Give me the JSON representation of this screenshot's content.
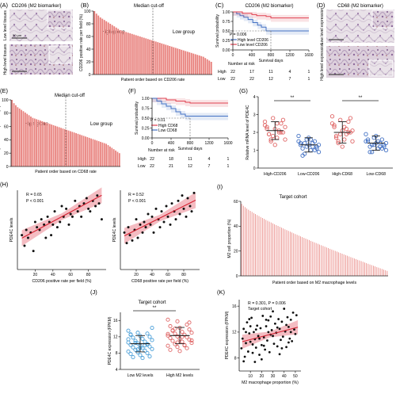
{
  "panels": {
    "A": {
      "label": "(A)",
      "title": "CD206 (M2 biomarker)",
      "row_low": "Low level tissues",
      "row_high": "High level tissues",
      "scale": "50 μm"
    },
    "B": {
      "label": "(B)",
      "median": "Median cut-off",
      "high": "High group",
      "low": "Low group"
    },
    "C": {
      "label": "(C)",
      "title": "CD206 (M2 biomarker)",
      "p": "P = 0.006",
      "legend_high": "High level CD206",
      "legend_low": "Low level CD206",
      "risk_title": "Number at risk",
      "risk_rows": [
        "High",
        "Low"
      ]
    },
    "D": {
      "label": "(D)",
      "title": "CD68 (M2 biomarker)",
      "row_low": "Low level expression",
      "row_high": "High level expression",
      "scale": "50 μm"
    },
    "E": {
      "label": "(E)",
      "median": "Median cut-off",
      "high": "High group",
      "low": "Low group"
    },
    "F": {
      "label": "(F)",
      "p": "P = 0.01",
      "legend_high": "High CD68",
      "legend_low": "Low CD68",
      "risk_title": "Number at risk",
      "risk_rows": [
        "High",
        "Low"
      ]
    },
    "G": {
      "label": "(G)",
      "sig1": "**",
      "sig2": "**"
    },
    "H": {
      "label": "(H)",
      "left_stats": [
        "R = 0.65",
        "P < 0.001"
      ],
      "right_stats": [
        "R = 0.52",
        "P < 0.001"
      ]
    },
    "I": {
      "label": "(I)",
      "title": "Target cohort"
    },
    "J": {
      "label": "(J)",
      "title": "Target cohort",
      "sig": "**"
    },
    "K": {
      "label": "(K)",
      "stats": "R = 0.301, P = 0.006",
      "title": "Target cohort"
    }
  },
  "chart_data": [
    {
      "id": "B",
      "type": "bar",
      "ylabel": "CD206 positive rate per field (%)",
      "xlabel": "Patient order based on CD206 rate",
      "ylim": [
        0,
        100
      ],
      "yticks": [
        0,
        20,
        40,
        60,
        80,
        100
      ],
      "values": [
        100,
        96,
        93,
        90,
        88,
        86,
        84,
        82,
        80,
        78,
        76,
        74,
        72,
        70,
        69,
        68,
        67,
        66,
        65,
        64,
        63,
        62,
        61,
        60,
        59,
        58,
        57,
        56,
        55,
        54,
        53,
        52,
        51,
        50,
        49,
        48,
        47,
        46,
        45,
        44,
        43,
        42,
        41,
        40,
        39,
        38,
        37,
        36,
        35,
        34,
        33,
        32,
        31,
        30,
        29,
        28,
        26,
        24,
        22,
        20
      ],
      "color": "#e8807c"
    },
    {
      "id": "C",
      "type": "line",
      "ylabel": "Survival probability",
      "xlabel": "Survival days",
      "xlim": [
        0,
        1600
      ],
      "ylim": [
        0,
        1
      ],
      "xticks": [
        0,
        400,
        800,
        1200,
        1600
      ],
      "yticks": [
        0,
        0.25,
        0.5,
        0.75,
        1.0
      ],
      "series": [
        {
          "name": "High level CD206",
          "color": "#4472c4",
          "x": [
            0,
            80,
            150,
            230,
            320,
            420,
            520,
            600,
            700,
            1600
          ],
          "y": [
            1.0,
            0.95,
            0.9,
            0.86,
            0.8,
            0.72,
            0.65,
            0.6,
            0.5,
            0.5
          ]
        },
        {
          "name": "Low level CD206",
          "color": "#e04050",
          "x": [
            0,
            200,
            400,
            500,
            700,
            800,
            1600
          ],
          "y": [
            1.0,
            0.96,
            0.93,
            0.9,
            0.88,
            0.84,
            0.84
          ]
        }
      ],
      "risk_x": [
        0,
        400,
        800,
        1200,
        1600
      ],
      "risk_high": [
        22,
        17,
        11,
        4,
        1
      ],
      "risk_low": [
        22,
        22,
        12,
        7,
        1
      ]
    },
    {
      "id": "E",
      "type": "bar",
      "ylabel": "CD68 positive rate per field (%)",
      "xlabel": "Patient order based on CD68 rate",
      "ylim": [
        0,
        100
      ],
      "yticks": [
        0,
        20,
        40,
        60,
        80,
        100
      ],
      "values": [
        100,
        95,
        92,
        89,
        87,
        85,
        83,
        81,
        79,
        77,
        75,
        73,
        72,
        71,
        70,
        69,
        68,
        67,
        66,
        65,
        64,
        63,
        62,
        61,
        60,
        59,
        58,
        57,
        56,
        55,
        54,
        53,
        52,
        51,
        50,
        49,
        48,
        47,
        46,
        45,
        44,
        43,
        42,
        41,
        40,
        39,
        38,
        37,
        36,
        35,
        34,
        32,
        30,
        28,
        26,
        24,
        22,
        20
      ],
      "color": "#e8807c"
    },
    {
      "id": "F",
      "type": "line",
      "ylabel": "Survival probability",
      "xlabel": "Survival days",
      "xlim": [
        0,
        1600
      ],
      "ylim": [
        0,
        1
      ],
      "xticks": [
        0,
        400,
        800,
        1200,
        1600
      ],
      "yticks": [
        0,
        0.25,
        0.5,
        0.75,
        1.0
      ],
      "series": [
        {
          "name": "High CD68",
          "color": "#e04050",
          "x": [
            0,
            300,
            500,
            700,
            800,
            1600
          ],
          "y": [
            1.0,
            0.96,
            0.93,
            0.9,
            0.88,
            0.88
          ]
        },
        {
          "name": "Low CD68",
          "color": "#4472c4",
          "x": [
            0,
            100,
            200,
            300,
            400,
            500,
            600,
            700,
            1600
          ],
          "y": [
            1.0,
            0.93,
            0.86,
            0.8,
            0.74,
            0.66,
            0.6,
            0.55,
            0.55
          ]
        }
      ],
      "risk_x": [
        0,
        400,
        800,
        1200,
        1600
      ],
      "risk_high": [
        22,
        18,
        11,
        4,
        1
      ],
      "risk_low": [
        22,
        21,
        12,
        7,
        1
      ]
    },
    {
      "id": "G",
      "type": "scatter",
      "ylabel": "Relative mRNA level of PDE4C",
      "ylim": [
        0,
        4
      ],
      "yticks": [
        0,
        1,
        2,
        3,
        4
      ],
      "categories": [
        "High-CD206",
        "Low-CD206",
        "High-CD68",
        "Low-CD68"
      ],
      "colors": [
        "#e06666",
        "#4472c4",
        "#e06666",
        "#4472c4"
      ],
      "means": [
        2.1,
        1.3,
        2.0,
        1.4
      ],
      "sds": [
        0.5,
        0.4,
        0.6,
        0.4
      ],
      "values": [
        [
          2.6,
          2.8,
          2.5,
          2.3,
          2.2,
          2.0,
          1.9,
          1.7,
          1.6,
          1.5,
          2.1,
          2.4,
          1.8,
          2.0,
          2.2,
          1.3,
          2.7,
          1.9,
          2.5,
          2.3,
          1.6,
          2.0
        ],
        [
          1.8,
          1.6,
          1.5,
          1.4,
          1.3,
          1.2,
          1.1,
          1.0,
          0.9,
          0.8,
          1.4,
          1.5,
          1.2,
          1.0,
          1.3,
          1.7,
          1.1,
          0.7,
          1.6,
          1.3,
          1.4,
          1.2
        ],
        [
          2.9,
          2.7,
          2.6,
          2.3,
          2.1,
          2.0,
          1.8,
          1.6,
          1.5,
          1.4,
          2.2,
          2.5,
          1.9,
          2.0,
          2.4,
          1.2,
          2.8,
          1.7,
          2.3,
          2.1,
          1.5,
          1.9
        ],
        [
          1.9,
          1.7,
          1.6,
          1.5,
          1.4,
          1.3,
          1.2,
          1.1,
          1.0,
          0.9,
          1.4,
          1.5,
          1.3,
          1.1,
          1.6,
          1.8,
          1.2,
          0.9,
          1.5,
          1.4,
          1.3,
          1.2
        ]
      ]
    },
    {
      "id": "H1",
      "type": "scatter",
      "ylabel": "PDE4C levels",
      "xlabel": "CD206 positive rate per field (%)",
      "xlim": [
        0,
        100
      ],
      "ylim": [
        0,
        3
      ],
      "xticks": [
        20,
        40,
        60,
        80
      ],
      "fit": {
        "intercept": 1.1,
        "slope": 0.018
      },
      "points": [
        [
          5,
          1.3
        ],
        [
          8,
          0.9
        ],
        [
          10,
          1.5
        ],
        [
          12,
          1.2
        ],
        [
          15,
          1.4
        ],
        [
          18,
          0.7
        ],
        [
          20,
          1.8
        ],
        [
          22,
          1.6
        ],
        [
          25,
          1.5
        ],
        [
          27,
          1.9
        ],
        [
          30,
          1.7
        ],
        [
          32,
          1.2
        ],
        [
          34,
          2.0
        ],
        [
          36,
          1.8
        ],
        [
          38,
          1.3
        ],
        [
          40,
          1.7
        ],
        [
          42,
          2.2
        ],
        [
          45,
          1.6
        ],
        [
          48,
          1.8
        ],
        [
          50,
          2.4
        ],
        [
          52,
          2.0
        ],
        [
          55,
          2.3
        ],
        [
          58,
          1.7
        ],
        [
          60,
          2.1
        ],
        [
          62,
          2.0
        ],
        [
          65,
          2.6
        ],
        [
          68,
          2.2
        ],
        [
          70,
          2.4
        ],
        [
          72,
          2.0
        ],
        [
          75,
          2.5
        ],
        [
          78,
          2.7
        ],
        [
          80,
          2.3
        ],
        [
          82,
          2.2
        ],
        [
          85,
          2.6
        ],
        [
          88,
          2.4
        ],
        [
          90,
          2.8
        ],
        [
          92,
          2.5
        ],
        [
          95,
          1.9
        ]
      ]
    },
    {
      "id": "H2",
      "type": "scatter",
      "ylabel": "PDE4C levels",
      "xlabel": "CD68 positive rate per field (%)",
      "xlim": [
        0,
        100
      ],
      "ylim": [
        0,
        3
      ],
      "xticks": [
        20,
        40,
        60,
        80
      ],
      "fit": {
        "intercept": 1.2,
        "slope": 0.015
      },
      "points": [
        [
          5,
          1.4
        ],
        [
          8,
          1.0
        ],
        [
          10,
          1.6
        ],
        [
          12,
          1.3
        ],
        [
          15,
          1.1
        ],
        [
          18,
          1.5
        ],
        [
          20,
          1.9
        ],
        [
          22,
          1.2
        ],
        [
          25,
          1.7
        ],
        [
          28,
          1.4
        ],
        [
          30,
          1.8
        ],
        [
          32,
          1.6
        ],
        [
          35,
          2.1
        ],
        [
          38,
          1.7
        ],
        [
          40,
          2.0
        ],
        [
          42,
          1.4
        ],
        [
          45,
          2.3
        ],
        [
          48,
          1.9
        ],
        [
          50,
          1.6
        ],
        [
          52,
          2.2
        ],
        [
          55,
          1.8
        ],
        [
          58,
          2.4
        ],
        [
          60,
          2.0
        ],
        [
          63,
          1.7
        ],
        [
          65,
          2.5
        ],
        [
          68,
          2.2
        ],
        [
          70,
          1.9
        ],
        [
          73,
          2.6
        ],
        [
          75,
          2.1
        ],
        [
          78,
          2.8
        ],
        [
          80,
          2.3
        ],
        [
          83,
          2.0
        ],
        [
          85,
          2.7
        ],
        [
          88,
          2.4
        ],
        [
          90,
          2.2
        ],
        [
          93,
          2.9
        ]
      ]
    },
    {
      "id": "I",
      "type": "bar",
      "ylabel": "M2 cell proportion (%)",
      "xlabel": "Patient order based on M2 macrophage levels",
      "ylim": [
        0,
        60
      ],
      "yticks": [
        0,
        20,
        40,
        60
      ],
      "color": "#e8807c",
      "n": 85,
      "max": 58,
      "min": 4
    },
    {
      "id": "J",
      "type": "scatter",
      "ylabel": "PDE4C expression (FPKM)",
      "ylim": [
        4,
        18
      ],
      "yticks": [
        4,
        8,
        12,
        16
      ],
      "categories": [
        "Low M2 levels",
        "High M2 levels"
      ],
      "colors": [
        "#4a9fd8",
        "#e06666"
      ],
      "means": [
        10.3,
        12.3
      ],
      "sds": [
        2.0,
        2.0
      ],
      "values": [
        [
          13.5,
          13.0,
          12.8,
          12.5,
          12.2,
          12.0,
          11.8,
          11.5,
          11.2,
          11.0,
          10.8,
          10.6,
          10.4,
          10.2,
          10.0,
          9.8,
          9.6,
          9.4,
          9.2,
          9.0,
          8.8,
          8.6,
          8.4,
          8.2,
          8.0,
          7.8,
          7.5,
          7.2,
          7.0,
          6.8,
          14.2,
          10.5,
          9.9,
          11.4,
          8.9,
          10.1,
          12.6,
          9.3
        ],
        [
          16.2,
          15.8,
          15.0,
          14.6,
          14.2,
          13.8,
          13.5,
          13.2,
          13.0,
          12.8,
          12.5,
          12.3,
          12.1,
          11.9,
          11.7,
          11.5,
          11.3,
          11.0,
          10.8,
          10.5,
          10.2,
          10.0,
          9.8,
          9.5,
          9.2,
          8.8,
          8.5,
          15.5,
          13.6,
          12.0,
          11.1,
          14.0,
          9.9,
          12.7,
          10.6
        ]
      ]
    },
    {
      "id": "K",
      "type": "scatter",
      "ylabel": "PDE4C expression (FPKM)",
      "xlabel": "M2  macrophage proportion (%)",
      "xlim": [
        0,
        55
      ],
      "ylim": [
        6,
        17
      ],
      "xticks": [
        10,
        20,
        30,
        40,
        50
      ],
      "yticks": [
        8,
        12,
        16
      ],
      "fit": {
        "intercept": 10.4,
        "slope": 0.045
      },
      "points": [
        [
          2,
          9.5
        ],
        [
          3,
          11.0
        ],
        [
          4,
          12.5
        ],
        [
          5,
          8.2
        ],
        [
          6,
          10.3
        ],
        [
          7,
          13.5
        ],
        [
          8,
          9.0
        ],
        [
          9,
          11.8
        ],
        [
          10,
          10.5
        ],
        [
          11,
          14.2
        ],
        [
          12,
          8.8
        ],
        [
          13,
          12.0
        ],
        [
          14,
          10.9
        ],
        [
          15,
          9.6
        ],
        [
          16,
          13.0
        ],
        [
          17,
          11.4
        ],
        [
          18,
          8.5
        ],
        [
          19,
          12.6
        ],
        [
          20,
          10.0
        ],
        [
          21,
          14.5
        ],
        [
          22,
          11.2
        ],
        [
          23,
          9.3
        ],
        [
          24,
          12.9
        ],
        [
          25,
          10.7
        ],
        [
          26,
          13.8
        ],
        [
          27,
          8.9
        ],
        [
          28,
          11.6
        ],
        [
          29,
          12.3
        ],
        [
          30,
          15.2
        ],
        [
          31,
          10.2
        ],
        [
          32,
          13.3
        ],
        [
          33,
          11.9
        ],
        [
          34,
          9.8
        ],
        [
          35,
          14.0
        ],
        [
          36,
          12.5
        ],
        [
          37,
          10.8
        ],
        [
          38,
          13.6
        ],
        [
          39,
          11.3
        ],
        [
          40,
          15.6
        ],
        [
          41,
          12.1
        ],
        [
          42,
          9.7
        ],
        [
          43,
          14.3
        ],
        [
          44,
          12.8
        ],
        [
          45,
          11.0
        ],
        [
          46,
          13.9
        ],
        [
          47,
          10.6
        ],
        [
          48,
          15.0
        ],
        [
          49,
          12.4
        ],
        [
          50,
          11.7
        ],
        [
          51,
          14.6
        ],
        [
          4,
          7.5
        ],
        [
          6,
          12.0
        ],
        [
          9,
          14.0
        ],
        [
          12,
          10.1
        ],
        [
          15,
          12.4
        ],
        [
          18,
          11.0
        ],
        [
          22,
          9.9
        ],
        [
          26,
          12.0
        ],
        [
          30,
          11.4
        ],
        [
          34,
          12.7
        ],
        [
          38,
          9.5
        ],
        [
          42,
          13.1
        ],
        [
          46,
          12.0
        ],
        [
          20,
          7.8
        ],
        [
          28,
          14.4
        ],
        [
          36,
          8.6
        ],
        [
          44,
          10.4
        ],
        [
          10,
          12.9
        ],
        [
          14,
          7.4
        ],
        [
          24,
          13.9
        ]
      ]
    }
  ]
}
